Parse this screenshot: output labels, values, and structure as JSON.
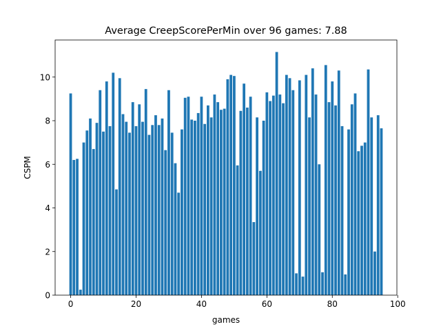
{
  "chart_data": {
    "type": "bar",
    "title": "Average CreepScorePerMin over 96 games: 7.88",
    "xlabel": "games",
    "ylabel": "CSPM",
    "xlim": [
      -4.75,
      99.75
    ],
    "ylim": [
      0,
      11.7
    ],
    "xticks": [
      0,
      20,
      40,
      60,
      80,
      100
    ],
    "yticks": [
      0,
      2,
      4,
      6,
      8,
      10
    ],
    "grid": false,
    "bar_color": "#1f77b4",
    "x": [
      0,
      1,
      2,
      3,
      4,
      5,
      6,
      7,
      8,
      9,
      10,
      11,
      12,
      13,
      14,
      15,
      16,
      17,
      18,
      19,
      20,
      21,
      22,
      23,
      24,
      25,
      26,
      27,
      28,
      29,
      30,
      31,
      32,
      33,
      34,
      35,
      36,
      37,
      38,
      39,
      40,
      41,
      42,
      43,
      44,
      45,
      46,
      47,
      48,
      49,
      50,
      51,
      52,
      53,
      54,
      55,
      56,
      57,
      58,
      59,
      60,
      61,
      62,
      63,
      64,
      65,
      66,
      67,
      68,
      69,
      70,
      71,
      72,
      73,
      74,
      75,
      76,
      77,
      78,
      79,
      80,
      81,
      82,
      83,
      84,
      85,
      86,
      87,
      88,
      89,
      90,
      91,
      92,
      93,
      94,
      95
    ],
    "values": [
      9.25,
      6.2,
      6.25,
      0.25,
      7.0,
      7.55,
      8.1,
      6.7,
      7.9,
      9.4,
      7.5,
      9.8,
      7.75,
      10.2,
      4.85,
      9.95,
      8.3,
      7.95,
      7.45,
      8.85,
      7.75,
      8.75,
      7.95,
      9.45,
      7.35,
      7.8,
      8.25,
      7.8,
      8.1,
      6.65,
      9.4,
      7.45,
      6.05,
      4.7,
      7.6,
      9.05,
      9.1,
      8.05,
      8.0,
      8.35,
      9.1,
      7.85,
      8.7,
      8.15,
      9.2,
      8.85,
      8.5,
      8.55,
      9.9,
      10.1,
      10.05,
      5.95,
      8.45,
      9.7,
      8.6,
      9.1,
      3.35,
      8.15,
      5.7,
      8.0,
      9.3,
      8.9,
      9.15,
      11.15,
      9.2,
      8.8,
      10.1,
      9.95,
      9.4,
      1.0,
      9.85,
      0.85,
      10.1,
      8.15,
      10.4,
      9.2,
      6.0,
      1.05,
      10.55,
      8.85,
      9.8,
      8.7,
      10.3,
      7.75,
      0.95,
      7.6,
      8.75,
      9.25,
      6.6,
      6.85,
      7.0,
      10.35,
      8.15,
      2.0,
      8.25,
      7.65
    ]
  }
}
